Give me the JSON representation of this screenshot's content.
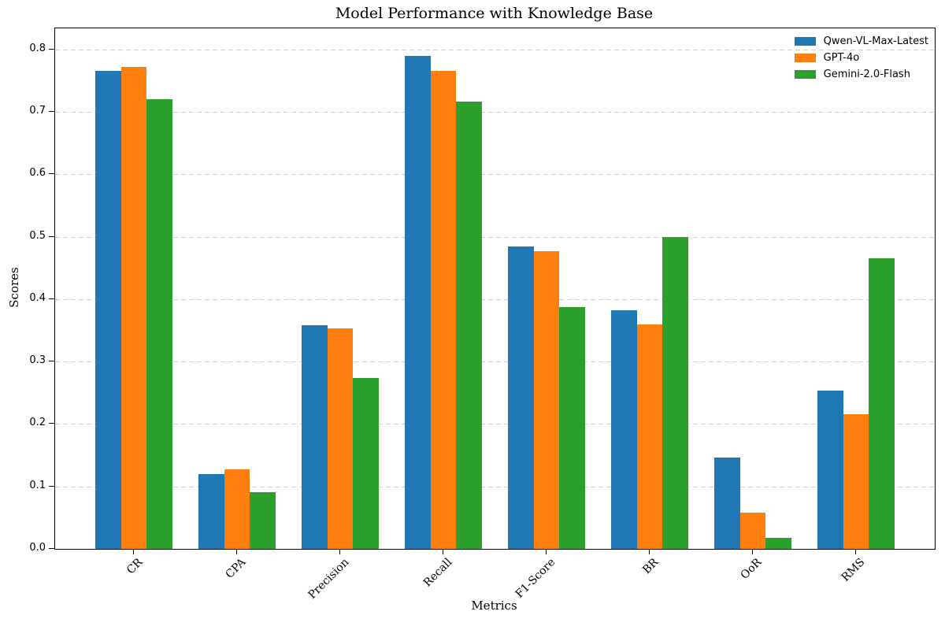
{
  "chart_data": {
    "type": "bar",
    "title": "Model Performance with Knowledge Base",
    "xlabel": "Metrics",
    "ylabel": "Scores",
    "categories": [
      "CR",
      "CPA",
      "Precision",
      "Recall",
      "F1-Score",
      "BR",
      "OoR",
      "RMS"
    ],
    "series": [
      {
        "name": "Qwen-VL-Max-Latest",
        "color": "#1f77b4",
        "values": [
          0.766,
          0.12,
          0.358,
          0.79,
          0.484,
          0.382,
          0.146,
          0.254
        ]
      },
      {
        "name": "GPT-4o",
        "color": "#ff7f0e",
        "values": [
          0.772,
          0.127,
          0.353,
          0.766,
          0.477,
          0.36,
          0.058,
          0.216
        ]
      },
      {
        "name": "Gemini-2.0-Flash",
        "color": "#2ca02c",
        "values": [
          0.72,
          0.091,
          0.274,
          0.717,
          0.388,
          0.5,
          0.018,
          0.465
        ]
      }
    ],
    "yticks": [
      0.0,
      0.1,
      0.2,
      0.3,
      0.4,
      0.5,
      0.6,
      0.7,
      0.8
    ],
    "ylim": [
      0,
      0.834
    ],
    "grid": "horizontal-dashed",
    "grid_color": "#c9c9c9",
    "legend_position": "upper right",
    "background": "#ffffff"
  }
}
